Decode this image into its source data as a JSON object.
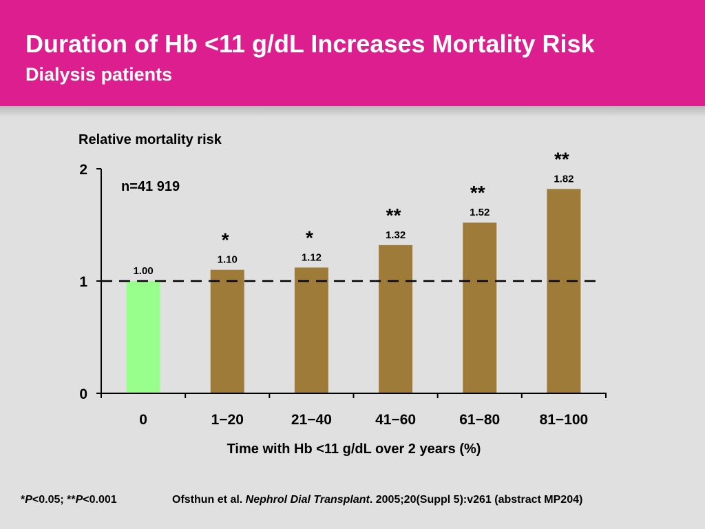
{
  "slide": {
    "title": "Duration of Hb <11 g/dL Increases Mortality Risk",
    "subtitle": "Dialysis patients",
    "footnote": {
      "star1": "*",
      "p1": "P",
      "text1": "<0.05; ",
      "star2": "**",
      "p2": "P",
      "text2": "<0.001"
    },
    "reference": {
      "authors": "Ofsthun et al. ",
      "journal": "Nephrol Dial Transplant",
      "details": ". 2005;20(Suppl 5):v261 (abstract MP204)"
    }
  },
  "colors": {
    "header": "#dc1e8e",
    "background": "#e0e0e0",
    "reference_bar": "#99ff8c",
    "bar": "#9e7b39"
  },
  "chart_data": {
    "type": "bar",
    "title": "",
    "ylabel": "Relative mortality risk",
    "xlabel": "Time with Hb <11 g/dL over 2 years (%)",
    "annotation": "n=41 919",
    "ylim": [
      0,
      2
    ],
    "yticks": [
      0,
      1,
      2
    ],
    "categories": [
      "0",
      "1−20",
      "21−40",
      "41−60",
      "61−80",
      "81−100"
    ],
    "values": [
      1.0,
      1.1,
      1.12,
      1.32,
      1.52,
      1.82
    ],
    "value_labels": [
      "1.00",
      "1.10",
      "1.12",
      "1.32",
      "1.52",
      "1.82"
    ],
    "significance": [
      "",
      "*",
      "*",
      "**",
      "**",
      "**"
    ],
    "reference_line": 1,
    "reference_line_style": "dashed",
    "grid": false
  }
}
